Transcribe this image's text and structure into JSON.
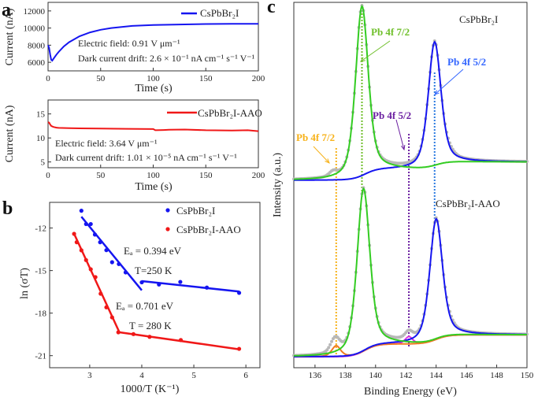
{
  "panels": {
    "a": "a",
    "b": "b",
    "c": "c"
  },
  "colors": {
    "blue": "#1515f0",
    "red": "#f01818",
    "green": "#33cc22",
    "gray": "#b8b8b8",
    "orange": "#f07a20",
    "magenta": "#dd33dd",
    "purple": "#6a1ea0",
    "gold": "#f7b21a",
    "lightblue": "#3366ff",
    "dotblue": "#2a7ae0",
    "olive": "#6fbf2a"
  },
  "chart_data": [
    {
      "type": "line",
      "xlabel": "Time (s)",
      "ylabel": "Current (nA)",
      "xlim": [
        0,
        200
      ],
      "ylim": [
        5000,
        13000
      ],
      "xticks": [
        0,
        50,
        100,
        150,
        200
      ],
      "yticks": [
        6000,
        8000,
        10000,
        12000
      ],
      "series": [
        {
          "name": "CsPbBr₂I",
          "color": "#1515f0",
          "x": [
            0,
            1,
            2,
            3,
            4,
            6,
            8,
            10,
            15,
            20,
            30,
            40,
            50,
            60,
            80,
            100,
            125,
            150,
            175,
            200
          ],
          "y": [
            8000,
            7700,
            6900,
            6300,
            6200,
            6550,
            6900,
            7200,
            7850,
            8350,
            9050,
            9500,
            9800,
            10000,
            10250,
            10350,
            10420,
            10470,
            10490,
            10500
          ]
        }
      ],
      "annotations": [
        "Electric field: 0.91 V μm⁻¹",
        "Dark current drift: 2.6 ×  10⁻¹ nA cm⁻¹ s⁻¹ V⁻¹"
      ],
      "legend": "top-right"
    },
    {
      "type": "line",
      "xlabel": "Time (s)",
      "ylabel": "Current (nA)",
      "xlim": [
        0,
        200
      ],
      "ylim": [
        3.8,
        17.9
      ],
      "xticks": [
        0,
        50,
        100,
        150,
        200
      ],
      "yticks": [
        5,
        10,
        15
      ],
      "series": [
        {
          "name": "CsPbBr₂I-AAO",
          "color": "#f01818",
          "x": [
            0,
            1,
            2,
            3,
            5,
            8,
            10,
            20,
            30,
            50,
            75,
            100,
            102,
            110,
            115,
            130,
            150,
            175,
            190,
            195,
            200
          ],
          "y": [
            13.3,
            13.2,
            12.8,
            12.5,
            12.3,
            12.15,
            12.1,
            12.05,
            12.0,
            11.95,
            11.9,
            11.85,
            11.6,
            11.65,
            11.7,
            11.75,
            11.6,
            11.55,
            11.6,
            11.5,
            11.4
          ]
        }
      ],
      "annotations": [
        "Electric field: 3.64 V μm⁻¹",
        "Dark current drift: 1.01 ×  10⁻⁵ nA cm⁻¹ s⁻¹ V⁻¹"
      ],
      "legend": "top-right"
    },
    {
      "type": "scatter",
      "xlabel": "1000/T (K⁻¹)",
      "ylabel": "ln (σT)",
      "xlim": [
        2.23,
        6.27
      ],
      "ylim": [
        -21.85,
        -10.19
      ],
      "xticks": [
        3,
        4,
        5,
        6
      ],
      "yticks": [
        -12,
        -15,
        -18,
        -21
      ],
      "series": [
        {
          "name": "CsPbBr₂I",
          "color": "#1515f0",
          "x": [
            2.84,
            2.93,
            3.02,
            3.1,
            3.2,
            3.32,
            3.43,
            3.56,
            3.69,
            4.0,
            4.33,
            4.74,
            5.25,
            5.87
          ],
          "y": [
            -10.78,
            -11.72,
            -11.72,
            -12.46,
            -13.0,
            -13.56,
            -14.41,
            -14.54,
            -15.13,
            -15.83,
            -15.98,
            -15.8,
            -16.2,
            -16.57
          ],
          "fits": [
            [
              [
                2.84,
                -11.2
              ],
              [
                4.0,
                -16.39
              ]
            ],
            [
              [
                4.0,
                -15.74
              ],
              [
                5.87,
                -16.48
              ]
            ]
          ]
        },
        {
          "name": "CsPbBr₂I-AAO",
          "color": "#f01818",
          "x": [
            2.7,
            2.75,
            2.84,
            2.93,
            3.02,
            3.11,
            3.21,
            3.32,
            3.43,
            3.55,
            3.84,
            4.15,
            4.75,
            5.87
          ],
          "y": [
            -12.41,
            -13.0,
            -13.57,
            -14.26,
            -14.91,
            -15.46,
            -16.63,
            -17.59,
            -18.3,
            -19.35,
            -19.48,
            -19.67,
            -19.9,
            -20.52
          ],
          "fits": [
            [
              [
                2.7,
                -12.4
              ],
              [
                3.57,
                -19.35
              ]
            ],
            [
              [
                3.57,
                -19.35
              ],
              [
                5.87,
                -20.55
              ]
            ]
          ]
        }
      ],
      "annotations": [
        "Eₐ = 0.394 eV",
        "T=250 K",
        "Eₐ = 0.701 eV",
        "T = 280 K"
      ],
      "legend": "top-right"
    },
    {
      "type": "line",
      "xlabel": "Binding Energy (eV)",
      "ylabel": "Intensity (a.u.)",
      "xlim": [
        134.6,
        150
      ],
      "ylim": [
        0,
        100
      ],
      "xticks": [
        136,
        138,
        140,
        142,
        144,
        146,
        148,
        150
      ],
      "spectra": [
        {
          "name": "CsPbBr₂I",
          "baseline": {
            "b0": 51.3,
            "steps": [
              [
                139.3,
                3
              ],
              [
                144.0,
                2
              ]
            ]
          },
          "peaks": [
            {
              "label": "Pb 4f 7/2",
              "center": 139.1,
              "height": 46.5,
              "hw": 0.5,
              "color": "#33cc22"
            },
            {
              "label": "Pb 4f 5/2",
              "center": 143.9,
              "height": 34,
              "hw": 0.5,
              "color": "#1515f0"
            }
          ]
        },
        {
          "name": "CsPbBr₂I-AAO",
          "baseline": {
            "b0": 3,
            "steps": [
              [
                139.3,
                3.5
              ],
              [
                144.0,
                2.5
              ]
            ]
          },
          "peaks": [
            {
              "label": "Pb 4f 7/2",
              "center": 139.2,
              "height": 44.5,
              "hw": 0.5,
              "color": "#33cc22"
            },
            {
              "label": "Pb 4f 5/2",
              "center": 144.0,
              "height": 33,
              "hw": 0.5,
              "color": "#1515f0"
            },
            {
              "label": "Pb 4f 7/2",
              "center": 137.4,
              "height": 3,
              "hw": 0.35,
              "color": "#f07a20"
            },
            {
              "label": "Pb 4f 5/2",
              "center": 142.2,
              "height": 2,
              "hw": 0.3,
              "color": "#dd33dd"
            }
          ]
        }
      ],
      "reference_lines": [
        {
          "x": 137.4,
          "color": "#f7b21a"
        },
        {
          "x": 139.1,
          "color": "#6fbf2a"
        },
        {
          "x": 142.2,
          "color": "#6a1ea0"
        },
        {
          "x": 143.9,
          "color": "#2a7ae0"
        }
      ],
      "peak_labels": [
        {
          "text": "Pb 4f 7/2",
          "color": "#6fbf2a"
        },
        {
          "text": "Pb 4f 5/2",
          "color": "#3366ff"
        },
        {
          "text": "Pb 4f 5/2",
          "color": "#6a1ea0"
        },
        {
          "text": "Pb 4f 7/2",
          "color": "#f7b21a"
        }
      ]
    }
  ]
}
